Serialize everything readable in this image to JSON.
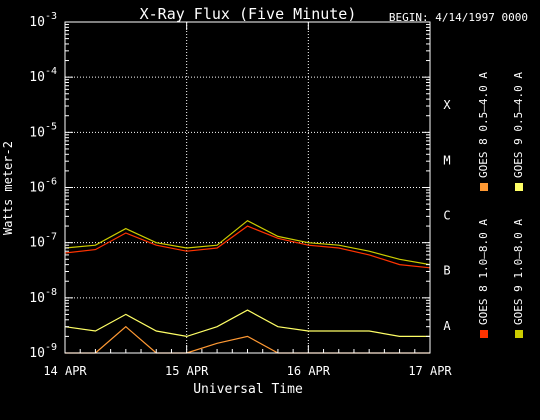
{
  "chart_data": {
    "type": "line",
    "title": "X-Ray Flux (Five Minute)",
    "begin_label": "BEGIN: 4/14/1997 0000",
    "xlabel": "Universal Time",
    "ylabel": "Watts meter-2",
    "y_scale": "log",
    "ylim": [
      1e-09,
      0.001
    ],
    "y_ticks": [
      {
        "exp": "-9",
        "value": 1e-09
      },
      {
        "exp": "-8",
        "value": 1e-08
      },
      {
        "exp": "-7",
        "value": 1e-07
      },
      {
        "exp": "-6",
        "value": 1e-06
      },
      {
        "exp": "-5",
        "value": 1e-05
      },
      {
        "exp": "-4",
        "value": 0.0001
      },
      {
        "exp": "-3",
        "value": 0.001
      }
    ],
    "x_ticks": [
      "14 APR",
      "15 APR",
      "16 APR",
      "17 APR"
    ],
    "flare_classes": [
      {
        "label": "A",
        "value": 1e-08
      },
      {
        "label": "B",
        "value": 1e-07
      },
      {
        "label": "C",
        "value": 1e-06
      },
      {
        "label": "M",
        "value": 1e-05
      },
      {
        "label": "X",
        "value": 0.0001
      }
    ],
    "grid": true,
    "legend_placement": "right",
    "series": [
      {
        "name": "GOES 8 1.0–8.0 A",
        "color": "#ff3300",
        "x_day": [
          0.0,
          0.25,
          0.5,
          0.75,
          1.0,
          1.25,
          1.5,
          1.75,
          2.0,
          2.25,
          2.5,
          2.75,
          3.0
        ],
        "values": [
          6.5e-08,
          7.5e-08,
          1.5e-07,
          9e-08,
          7e-08,
          8e-08,
          2e-07,
          1.2e-07,
          9e-08,
          8e-08,
          6e-08,
          4e-08,
          3.5e-08
        ]
      },
      {
        "name": "GOES 8 0.5–4.0 A",
        "color": "#ff9933",
        "x_day": [
          0.0,
          0.25,
          0.5,
          0.75,
          1.0,
          1.25,
          1.5,
          1.75,
          2.0,
          2.25,
          2.5,
          2.75,
          3.0
        ],
        "values": [
          1e-09,
          1e-09,
          3e-09,
          1e-09,
          1e-09,
          1.5e-09,
          2e-09,
          1e-09,
          1e-09,
          1e-09,
          1e-09,
          1e-09,
          1e-09
        ]
      },
      {
        "name": "GOES 9 1.0–8.0 A",
        "color": "#cccc00",
        "x_day": [
          0.0,
          0.25,
          0.5,
          0.75,
          1.0,
          1.25,
          1.5,
          1.75,
          2.0,
          2.25,
          2.5,
          2.75,
          3.0
        ],
        "values": [
          8e-08,
          9e-08,
          1.8e-07,
          1e-07,
          8e-08,
          9e-08,
          2.5e-07,
          1.3e-07,
          1e-07,
          9e-08,
          7e-08,
          5e-08,
          4e-08
        ]
      },
      {
        "name": "GOES 9 0.5–4.0 A",
        "color": "#ffff66",
        "x_day": [
          0.0,
          0.25,
          0.5,
          0.75,
          1.0,
          1.25,
          1.5,
          1.75,
          2.0,
          2.25,
          2.5,
          2.75,
          3.0
        ],
        "values": [
          3e-09,
          2.5e-09,
          5e-09,
          2.5e-09,
          2e-09,
          3e-09,
          6e-09,
          3e-09,
          2.5e-09,
          2.5e-09,
          2.5e-09,
          2e-09,
          2e-09
        ]
      }
    ]
  }
}
